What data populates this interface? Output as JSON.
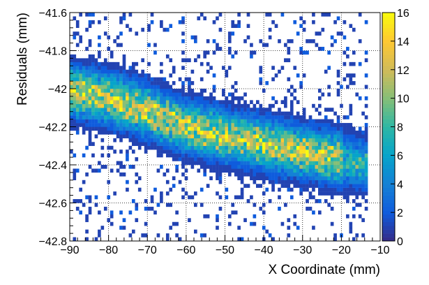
{
  "chart_data": {
    "type": "heatmap",
    "title": "",
    "xlabel": "X Coordinate (mm)",
    "ylabel": "Residuals (mm)",
    "xlim": [
      -90,
      -10
    ],
    "ylim": [
      -42.8,
      -41.6
    ],
    "x_ticks": [
      -90,
      -80,
      -70,
      -60,
      -50,
      -40,
      -30,
      -20,
      -10
    ],
    "y_ticks": [
      -42.8,
      -42.6,
      -42.4,
      -42.2,
      -42,
      -41.8,
      -41.6
    ],
    "x_tick_labels": [
      "−90",
      "−80",
      "−70",
      "−60",
      "−50",
      "−40",
      "−30",
      "−20",
      "−10"
    ],
    "y_tick_labels": [
      "−42.8",
      "−42.6",
      "−42.4",
      "−42.2",
      "−42",
      "−41.8",
      "−41.6"
    ],
    "grid": true,
    "colorbar": {
      "min": 0,
      "max": 16,
      "ticks": [
        0,
        2,
        4,
        6,
        8,
        10,
        12,
        14,
        16
      ],
      "tick_labels": [
        "0",
        "2",
        "4",
        "6",
        "8",
        "10",
        "12",
        "14",
        "16"
      ],
      "palette": [
        "#352a87",
        "#0f5cdd",
        "#1481d6",
        "#06a4ca",
        "#2eb7a4",
        "#87bf77",
        "#d1bb59",
        "#fec832",
        "#f9fb0e"
      ]
    },
    "bins": {
      "nx": 100,
      "ny": 60,
      "description_trend": [
        [
          -88,
          -42.02
        ],
        [
          -80,
          -42.05
        ],
        [
          -70,
          -42.12
        ],
        [
          -60,
          -42.2
        ],
        [
          -50,
          -42.25
        ],
        [
          -40,
          -42.29
        ],
        [
          -30,
          -42.33
        ],
        [
          -20,
          -42.37
        ],
        [
          -14,
          -42.4
        ]
      ],
      "band_width": 0.08,
      "peak_count": 15
    }
  }
}
